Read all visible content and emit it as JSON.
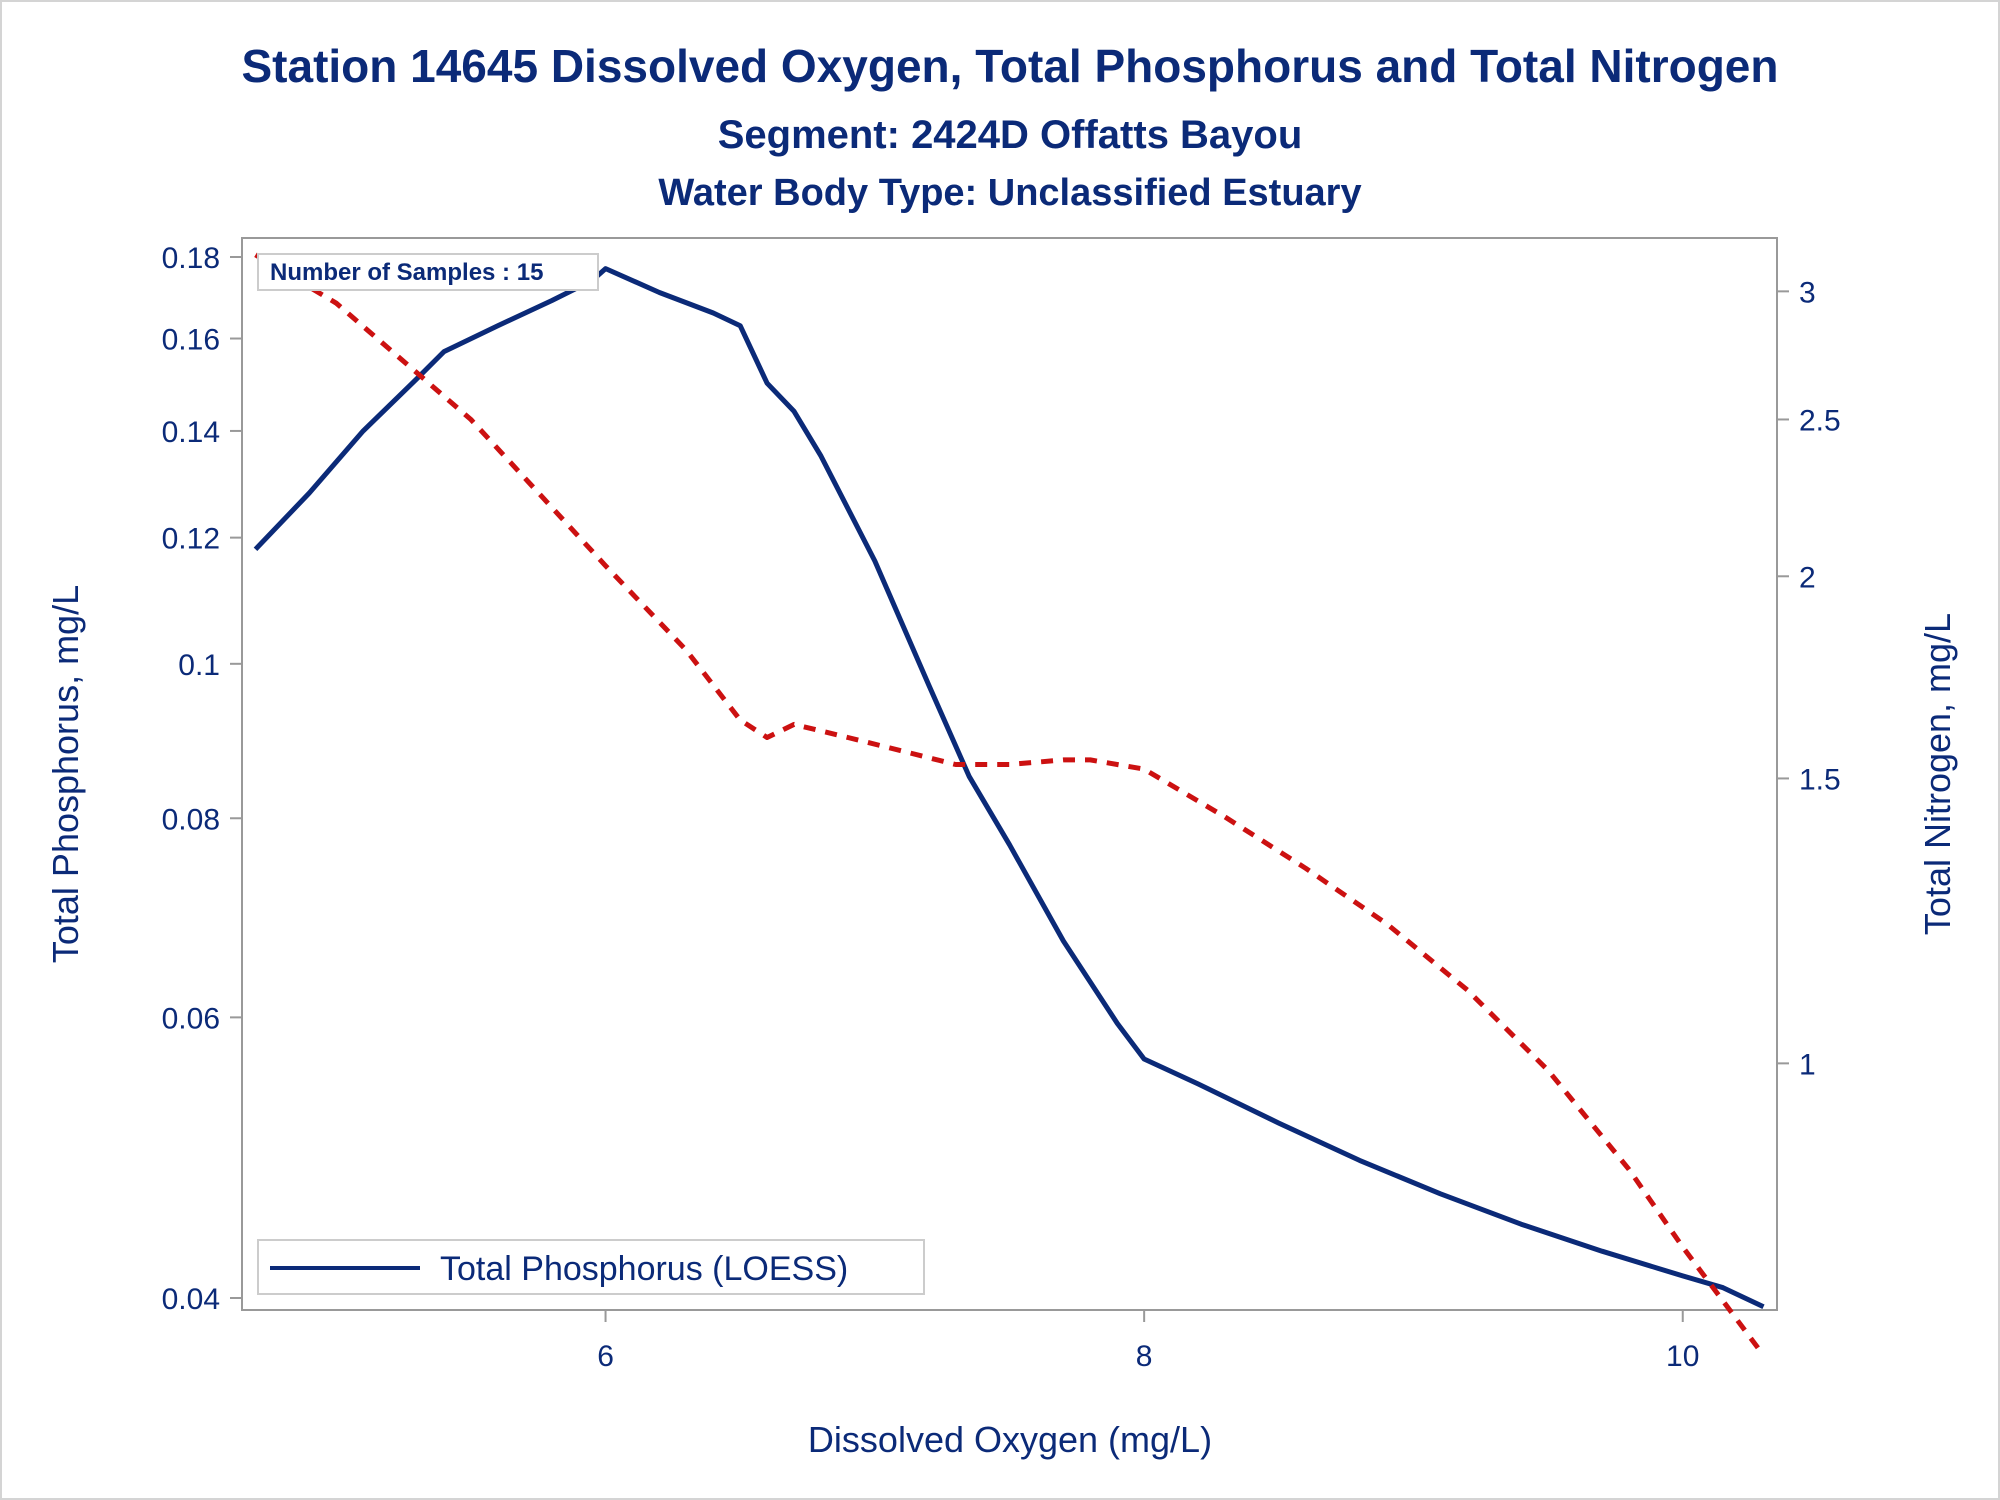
{
  "chart_data": {
    "type": "line",
    "title": "Station 14645  Dissolved Oxygen, Total Phosphorus and Total Nitrogen",
    "subtitle": "Segment: 2424D  Offatts Bayou",
    "subtitle2": "Water Body Type: Unclassified Estuary",
    "xlabel": "Dissolved Oxygen (mg/L)",
    "ylabel": "Total Phosphorus, mg/L",
    "y2label": "Total Nitrogen, mg/L",
    "xlim": [
      4.65,
      10.35
    ],
    "ylim": [
      0.04,
      0.18
    ],
    "y2lim": [
      0.7,
      3.2
    ],
    "yscale": "log",
    "y2scale": "log",
    "xticks": [
      6,
      8,
      10
    ],
    "yticks": [
      0.04,
      0.06,
      0.08,
      0.1,
      0.12,
      0.14,
      0.16,
      0.18
    ],
    "y2ticks": [
      1,
      1.5,
      2,
      2.5,
      3
    ],
    "inset_text": "Number of Samples : 15",
    "legend": {
      "placement": "bottom-left",
      "entries": [
        "Total Phosphorus (LOESS)"
      ]
    },
    "series": [
      {
        "name": "Total Phosphorus (LOESS)",
        "axis": "left",
        "color": "#0b2a78",
        "style": "solid",
        "x": [
          4.7,
          4.9,
          5.1,
          5.3,
          5.4,
          5.6,
          5.8,
          5.95,
          6.0,
          6.2,
          6.4,
          6.5,
          6.6,
          6.7,
          6.8,
          7.0,
          7.2,
          7.35,
          7.5,
          7.7,
          7.9,
          8.0,
          8.2,
          8.5,
          8.8,
          9.1,
          9.4,
          9.7,
          10.0,
          10.15,
          10.3
        ],
        "y": [
          0.118,
          0.128,
          0.14,
          0.151,
          0.157,
          0.163,
          0.169,
          0.174,
          0.177,
          0.171,
          0.166,
          0.163,
          0.15,
          0.144,
          0.135,
          0.116,
          0.097,
          0.085,
          0.077,
          0.067,
          0.0595,
          0.0565,
          0.0545,
          0.0515,
          0.0488,
          0.0465,
          0.0445,
          0.0428,
          0.0413,
          0.0406,
          0.0395
        ]
      },
      {
        "name": "",
        "axis": "right",
        "color": "#cc1111",
        "style": "dashed",
        "x": [
          4.7,
          5.0,
          5.5,
          6.0,
          6.3,
          6.5,
          6.6,
          6.7,
          6.9,
          7.1,
          7.3,
          7.5,
          7.7,
          7.8,
          8.0,
          8.3,
          8.6,
          8.9,
          9.2,
          9.5,
          9.8,
          10.0,
          10.3
        ],
        "y": [
          3.16,
          2.95,
          2.5,
          2.03,
          1.8,
          1.63,
          1.59,
          1.62,
          1.59,
          1.56,
          1.53,
          1.53,
          1.54,
          1.54,
          1.52,
          1.42,
          1.32,
          1.22,
          1.11,
          0.99,
          0.86,
          0.77,
          0.66
        ]
      }
    ]
  }
}
